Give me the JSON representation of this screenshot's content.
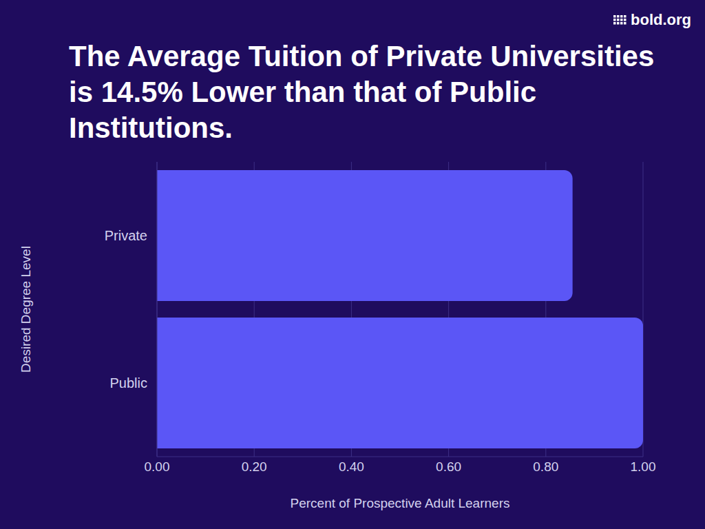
{
  "chart_data": {
    "type": "bar",
    "orientation": "horizontal",
    "title": "The Average Tuition of Private Universities is 14.5% Lower than that of Public Institutions.",
    "logo": "bold.org",
    "x_label": "Percent of Prospective Adult Learners",
    "y_label": "Desired Degree Level",
    "categories": [
      "Private",
      "Public"
    ],
    "values": [
      0.855,
      1.0
    ],
    "color": "#5b56f6",
    "xlim": [
      0,
      1
    ],
    "xticks": [
      {
        "value": 0,
        "label": "0.00"
      },
      {
        "value": 0.2,
        "label": "0.20"
      },
      {
        "value": 0.4,
        "label": "0.40"
      },
      {
        "value": 0.6,
        "label": "0.60"
      },
      {
        "value": 0.8,
        "label": "0.80"
      },
      {
        "value": 1.0,
        "label": "1.00"
      }
    ],
    "grid": true
  }
}
